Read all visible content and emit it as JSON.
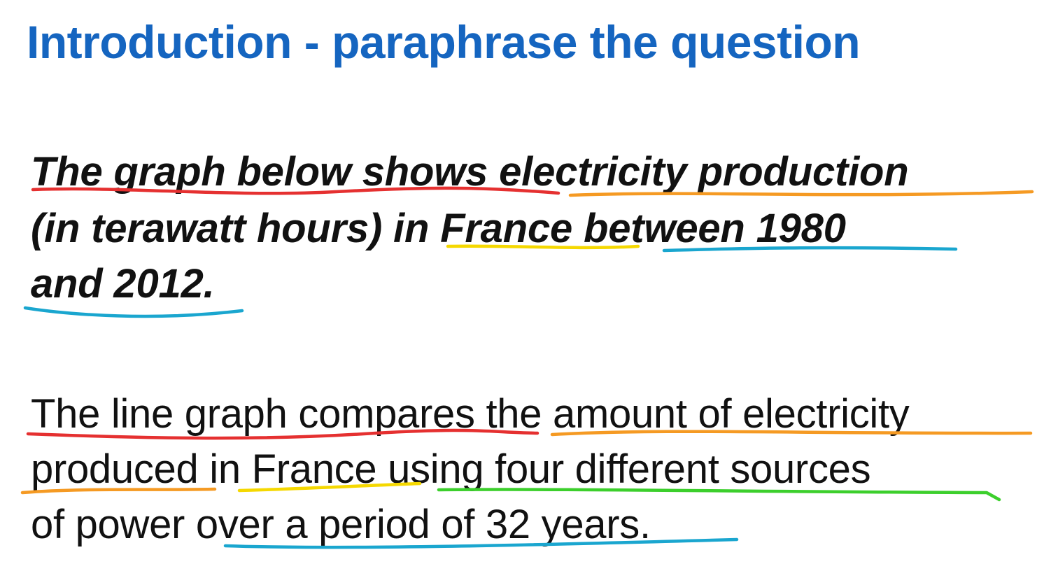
{
  "title": "Introduction - paraphrase the question",
  "question": {
    "line1": "The graph below shows electricity production",
    "line2": "(in terawatt hours) in France between 1980",
    "line3": "and 2012."
  },
  "answer": {
    "line1": "The line graph compares the amount of electricity",
    "line2": "produced in France using four different sources",
    "line3": "of power over a period of 32 years."
  },
  "underline_colors": {
    "red": "#e53030",
    "orange": "#f59a23",
    "yellow": "#f5d800",
    "blue": "#1aa6cf",
    "green": "#3ccf2c"
  },
  "title_color": "#1565c0"
}
